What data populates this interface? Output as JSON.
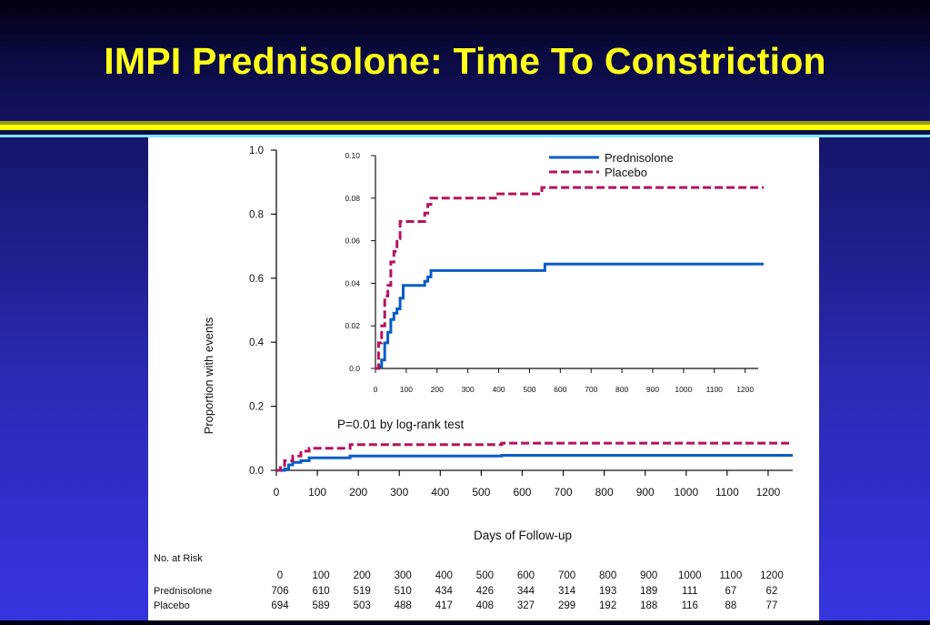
{
  "slide": {
    "title": "IMPI Prednisolone: Time To Constriction"
  },
  "colors": {
    "prednisolone": "#0a5cc7",
    "placebo": "#b3135f",
    "title": "#ffff1a"
  },
  "chart_data": [
    {
      "type": "line",
      "ylabel": "Proportion with events",
      "xlabel": "Days of Follow-up",
      "xlim": [
        0,
        1260
      ],
      "ylim": [
        0,
        1.0
      ],
      "yticks": [
        "0.0",
        "0.2",
        "0.4",
        "0.6",
        "0.8",
        "1.0"
      ],
      "xticks": [
        "0",
        "100",
        "200",
        "300",
        "400",
        "500",
        "600",
        "700",
        "800",
        "900",
        "1000",
        "1100",
        "1200"
      ],
      "annotation": "P=0.01 by log-rank test",
      "series": [
        {
          "name": "Prednisolone",
          "points": [
            [
              0,
              0
            ],
            [
              20,
              0.004
            ],
            [
              30,
              0.017
            ],
            [
              40,
              0.025
            ],
            [
              60,
              0.03
            ],
            [
              80,
              0.039
            ],
            [
              110,
              0.039
            ],
            [
              150,
              0.039
            ],
            [
              180,
              0.045
            ],
            [
              550,
              0.047
            ],
            [
              670,
              0.047
            ],
            [
              1260,
              0.047
            ]
          ]
        },
        {
          "name": "Placebo",
          "points": [
            [
              0,
              0
            ],
            [
              10,
              0.015
            ],
            [
              20,
              0.03
            ],
            [
              40,
              0.045
            ],
            [
              60,
              0.06
            ],
            [
              80,
              0.069
            ],
            [
              150,
              0.069
            ],
            [
              180,
              0.08
            ],
            [
              550,
              0.085
            ],
            [
              1260,
              0.085
            ]
          ]
        }
      ]
    },
    {
      "type": "line",
      "xlim": [
        0,
        1260
      ],
      "ylim": [
        0,
        0.1
      ],
      "yticks": [
        "0.0",
        "0.02",
        "0.04",
        "0.06",
        "0.08",
        "0.10"
      ],
      "xticks": [
        "0",
        "100",
        "200",
        "300",
        "400",
        "500",
        "600",
        "700",
        "800",
        "900",
        "1000",
        "1100",
        "1200"
      ],
      "legend": "top-right",
      "series": [
        {
          "name": "Prednisolone",
          "points": [
            [
              0,
              0
            ],
            [
              10,
              0.001
            ],
            [
              20,
              0.004
            ],
            [
              30,
              0.012
            ],
            [
              40,
              0.017
            ],
            [
              50,
              0.023
            ],
            [
              60,
              0.026
            ],
            [
              70,
              0.028
            ],
            [
              80,
              0.033
            ],
            [
              90,
              0.039
            ],
            [
              110,
              0.039
            ],
            [
              150,
              0.039
            ],
            [
              160,
              0.041
            ],
            [
              170,
              0.043
            ],
            [
              180,
              0.046
            ],
            [
              540,
              0.046
            ],
            [
              550,
              0.049
            ],
            [
              1260,
              0.049
            ]
          ]
        },
        {
          "name": "Placebo",
          "points": [
            [
              0,
              0
            ],
            [
              10,
              0.012
            ],
            [
              20,
              0.02
            ],
            [
              30,
              0.034
            ],
            [
              40,
              0.039
            ],
            [
              50,
              0.05
            ],
            [
              60,
              0.055
            ],
            [
              70,
              0.061
            ],
            [
              80,
              0.069
            ],
            [
              150,
              0.069
            ],
            [
              160,
              0.073
            ],
            [
              170,
              0.077
            ],
            [
              180,
              0.08
            ],
            [
              380,
              0.08
            ],
            [
              390,
              0.082
            ],
            [
              530,
              0.082
            ],
            [
              540,
              0.085
            ],
            [
              1260,
              0.085
            ]
          ]
        }
      ]
    }
  ],
  "risk_table": {
    "label": "No. at Risk",
    "days": [
      "0",
      "100",
      "200",
      "300",
      "400",
      "500",
      "600",
      "700",
      "800",
      "900",
      "1000",
      "1100",
      "1200"
    ],
    "rows": [
      {
        "name": "Prednisolone",
        "values": [
          "706",
          "610",
          "519",
          "510",
          "434",
          "426",
          "344",
          "314",
          "193",
          "189",
          "111",
          "67",
          "62"
        ]
      },
      {
        "name": "Placebo",
        "values": [
          "694",
          "589",
          "503",
          "488",
          "417",
          "408",
          "327",
          "299",
          "192",
          "188",
          "116",
          "88",
          "77"
        ]
      }
    ]
  }
}
